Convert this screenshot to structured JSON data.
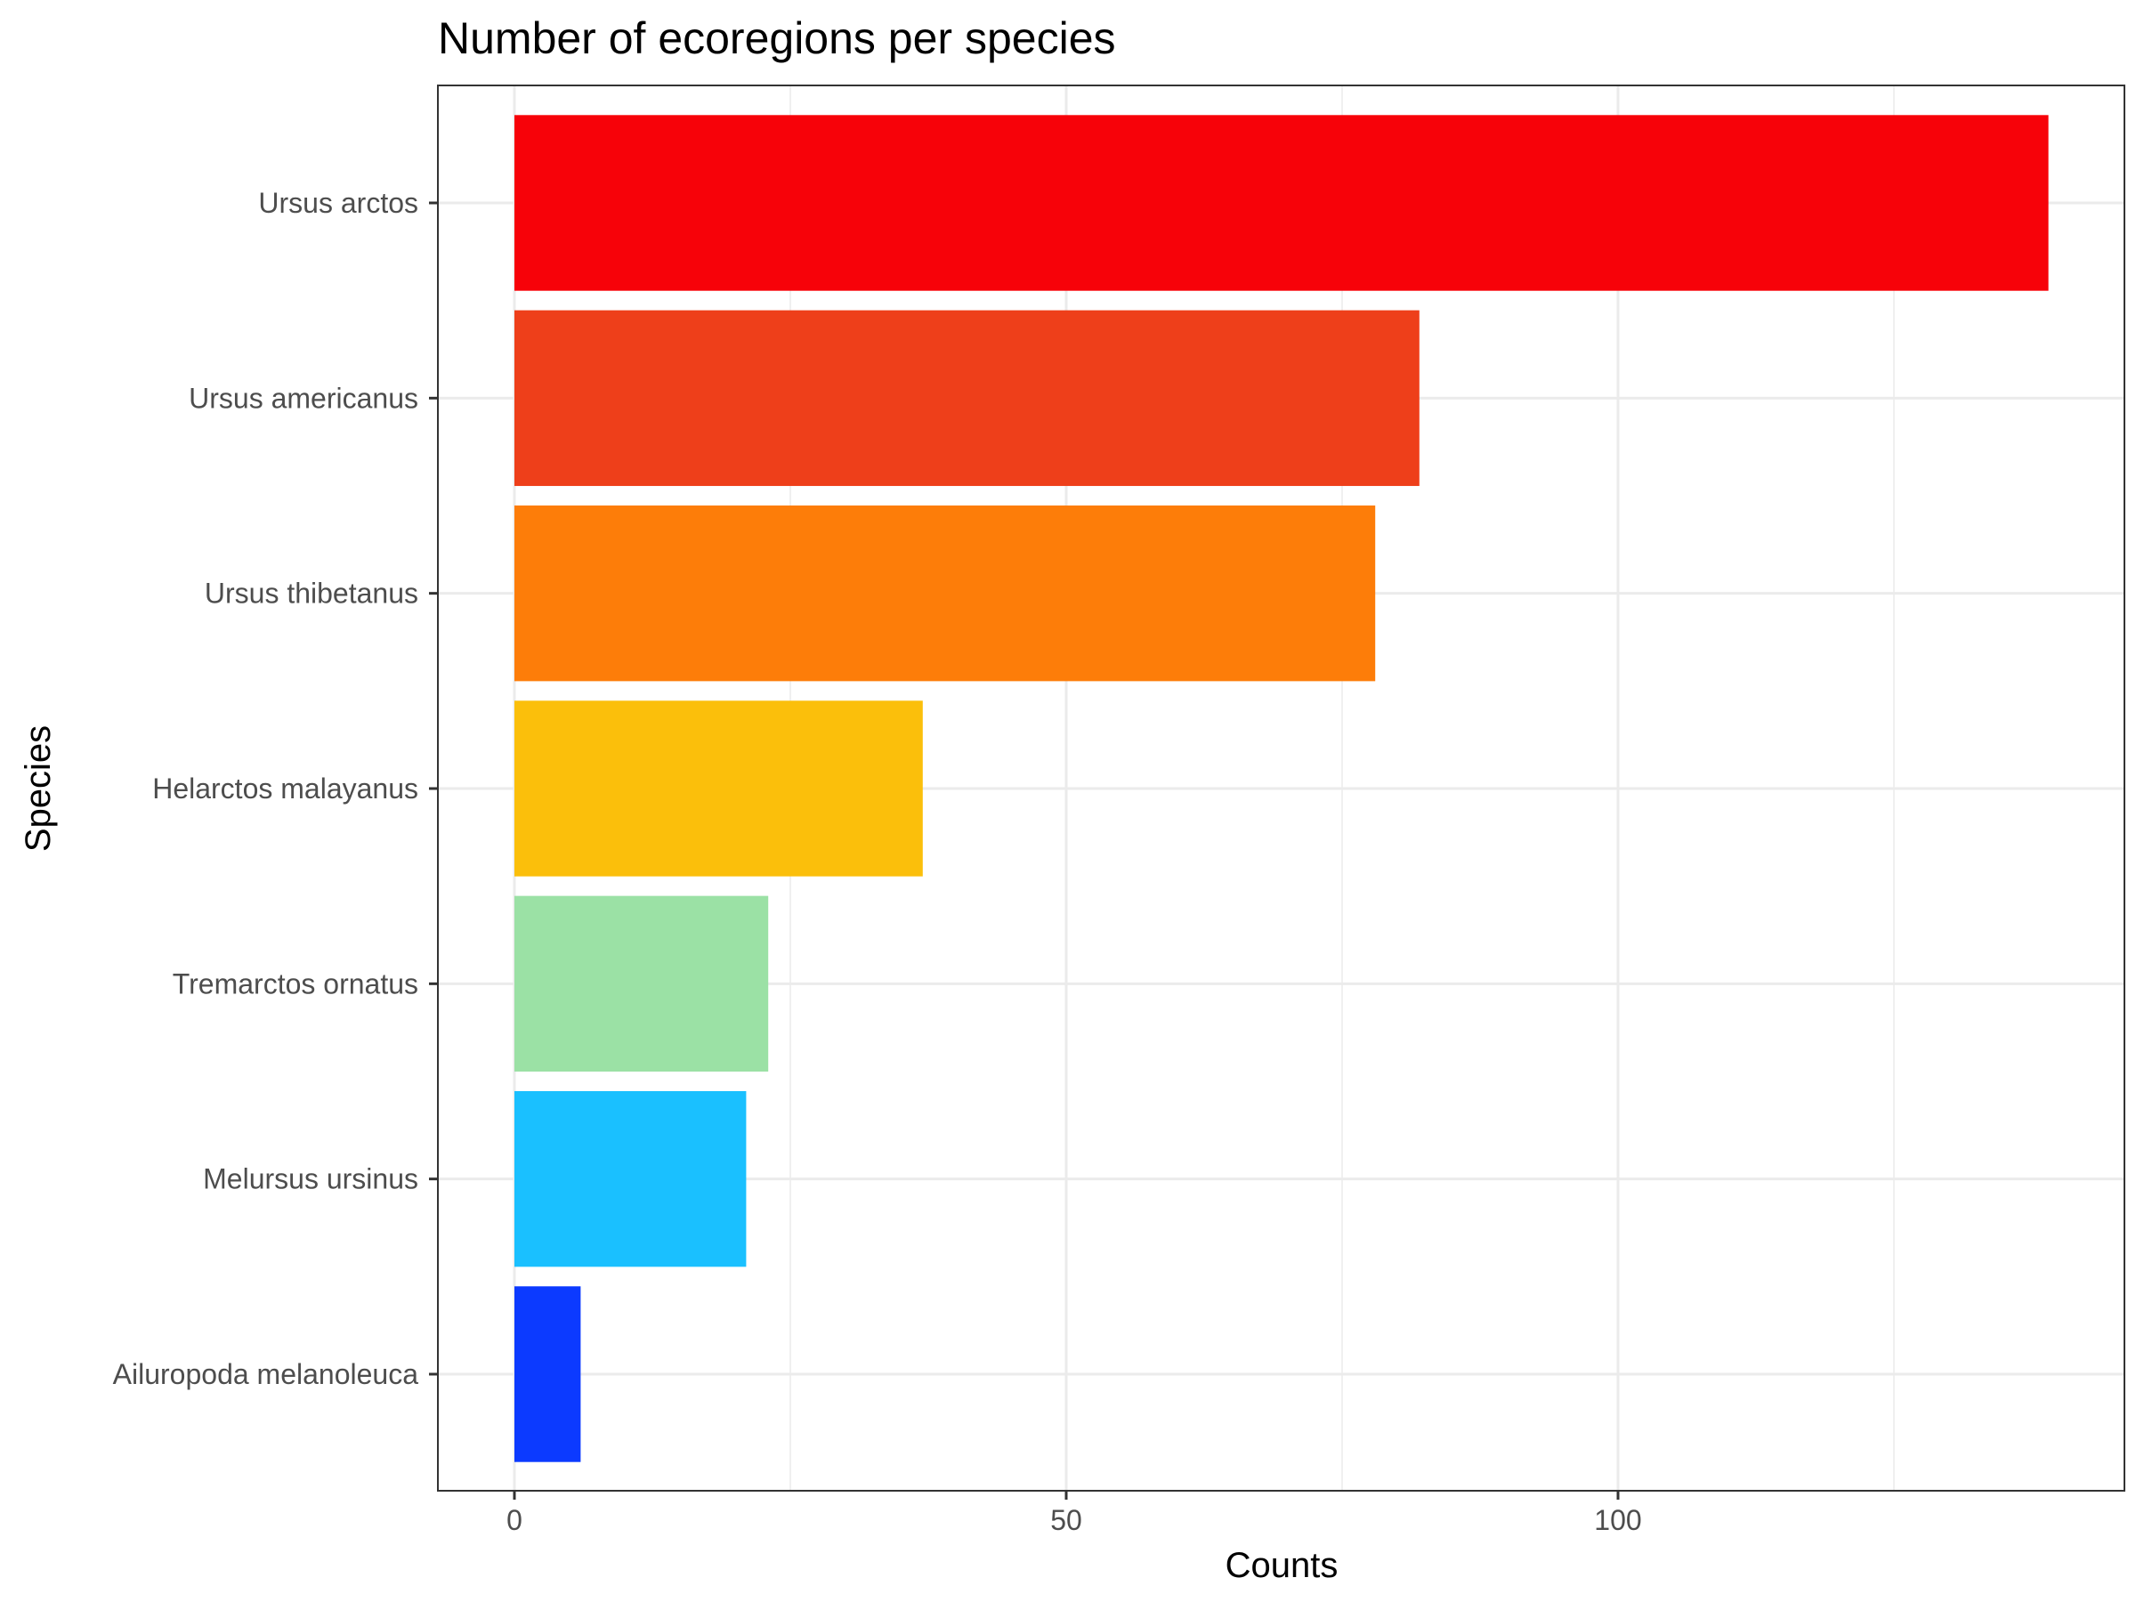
{
  "chart_data": {
    "type": "bar",
    "orientation": "horizontal",
    "title": "Number of ecoregions per species",
    "xlabel": "Counts",
    "ylabel": "Species",
    "categories": [
      "Ursus arctos",
      "Ursus americanus",
      "Ursus thibetanus",
      "Helarctos malayanus",
      "Tremarctos ornatus",
      "Melursus ursinus",
      "Ailuropoda melanoleuca"
    ],
    "values": [
      139,
      82,
      78,
      37,
      23,
      21,
      6
    ],
    "colors": [
      "#f70209",
      "#ee3f1a",
      "#fd7d09",
      "#fbbf0b",
      "#9be1a5",
      "#1ac0ff",
      "#0c3aff"
    ],
    "x_ticks": [
      "0",
      "50",
      "100"
    ],
    "x_tick_values": [
      0,
      50,
      100
    ],
    "xlim": [
      0,
      141
    ],
    "grid": true,
    "legend": "none"
  }
}
